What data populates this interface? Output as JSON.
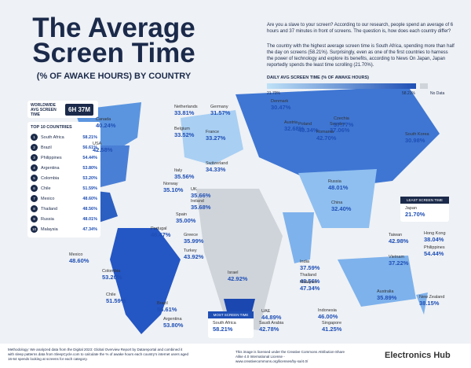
{
  "header": {
    "title": "The Average Screen Time",
    "subtitle": "(% OF AWAKE HOURS) BY COUNTRY"
  },
  "intro": [
    "Are you a slave to your screen? According to our research, people spend an average of 6 hours and 37 minutes in front of screens. The question is, how does each country differ?",
    "The country with the highest average screen time is South Africa, spending more than half the day on screens (58.21%). Surprisingly, even as one of the first countries to harness the power of technology and explore its benefits, according to News On Japan, Japan reportedly spends the least time scrolling (21.70%)."
  ],
  "legend": {
    "title": "DAILY AVG SCREEN TIME (% OF AWAKE HOURS)",
    "min": "21.70%",
    "max": "58.21%",
    "no_data": "No Data"
  },
  "worldwide": {
    "label": "WORLDWIDE AVG SCREEN TIME",
    "value": "6H 37M"
  },
  "top10": {
    "title": "TOP 10 COUNTRIES",
    "rows": [
      [
        "1",
        "South Africa",
        "58.21%"
      ],
      [
        "2",
        "Brazil",
        "56.61%"
      ],
      [
        "3",
        "Philippines",
        "54.44%"
      ],
      [
        "4",
        "Argentina",
        "53.80%"
      ],
      [
        "5",
        "Colombia",
        "53.20%"
      ],
      [
        "6",
        "Chile",
        "51.59%"
      ],
      [
        "7",
        "Mexico",
        "48.60%"
      ],
      [
        "8",
        "Thailand",
        "48.56%"
      ],
      [
        "9",
        "Russia",
        "48.01%"
      ],
      [
        "10",
        "Malaysia",
        "47.34%"
      ]
    ]
  },
  "countries": [
    [
      "Canada",
      "40.24%"
    ],
    [
      "USA",
      "42.58%"
    ],
    [
      "Netherlands",
      "33.81%"
    ],
    [
      "Germany",
      "31.57%"
    ],
    [
      "Denmark",
      "30.47%"
    ],
    [
      "Poland",
      "40.34%"
    ],
    [
      "Sweden",
      "37.06%"
    ],
    [
      "Belgium",
      "33.52%"
    ],
    [
      "France",
      "33.27%"
    ],
    [
      "Austria",
      "32.68%"
    ],
    [
      "Czechia",
      "37.77%"
    ],
    [
      "Romania",
      "42.70%"
    ],
    [
      "South Korea",
      "30.98%"
    ],
    [
      "Switzerland",
      "34.33%"
    ],
    [
      "Italy",
      "35.56%"
    ],
    [
      "Norway",
      "35.10%"
    ],
    [
      "UK",
      "35.66%"
    ],
    [
      "Russia",
      "48.01%"
    ],
    [
      "Ireland",
      "35.68%"
    ],
    [
      "Spain",
      "35.00%"
    ],
    [
      "China",
      "32.40%"
    ],
    [
      "Portugal",
      "46.47%"
    ],
    [
      "Greece",
      "35.99%"
    ],
    [
      "Turkey",
      "43.92%"
    ],
    [
      "Hong Kong",
      "38.04%"
    ],
    [
      "Taiwan",
      "42.98%"
    ],
    [
      "Philippines",
      "54.44%"
    ],
    [
      "Vietnam",
      "37.22%"
    ],
    [
      "Mexico",
      "48.60%"
    ],
    [
      "Colombia",
      "53.20%"
    ],
    [
      "Israel",
      "42.92%"
    ],
    [
      "India",
      "37.59%"
    ],
    [
      "Thailand",
      "48.56%"
    ],
    [
      "Malaysia",
      "47.34%"
    ],
    [
      "Australia",
      "35.89%"
    ],
    [
      "Chile",
      "51.59%"
    ],
    [
      "Brazil",
      "56.61%"
    ],
    [
      "UAE",
      "44.89%"
    ],
    [
      "Indonesia",
      "46.00%"
    ],
    [
      "New Zealand",
      "38.15%"
    ],
    [
      "Argentina",
      "53.80%"
    ],
    [
      "Saudi Arabia",
      "42.78%"
    ],
    [
      "Singapore",
      "41.25%"
    ]
  ],
  "least": {
    "label": "LEAST SCREEN TIME",
    "country": "Japan",
    "value": "21.70%"
  },
  "most": {
    "label": "MOST SCREEN TIME",
    "country": "South Africa",
    "value": "58.21%"
  },
  "footer": {
    "methodology": "Methodology: We analyzed data from the Digital 2023: Global Overview Report by Datareportal and combined it with sleep patterns data from SleepCycle.com to calculate the % of awake hours each country's internet users aged 16-64 spends looking at screens for each category.",
    "license": "This image is licensed under the Creative Commons Attribution-Share Alike 4.0 International License - www.creativecommons.org/licenses/by-sa/4.0/",
    "brand": "Electronics Hub"
  }
}
